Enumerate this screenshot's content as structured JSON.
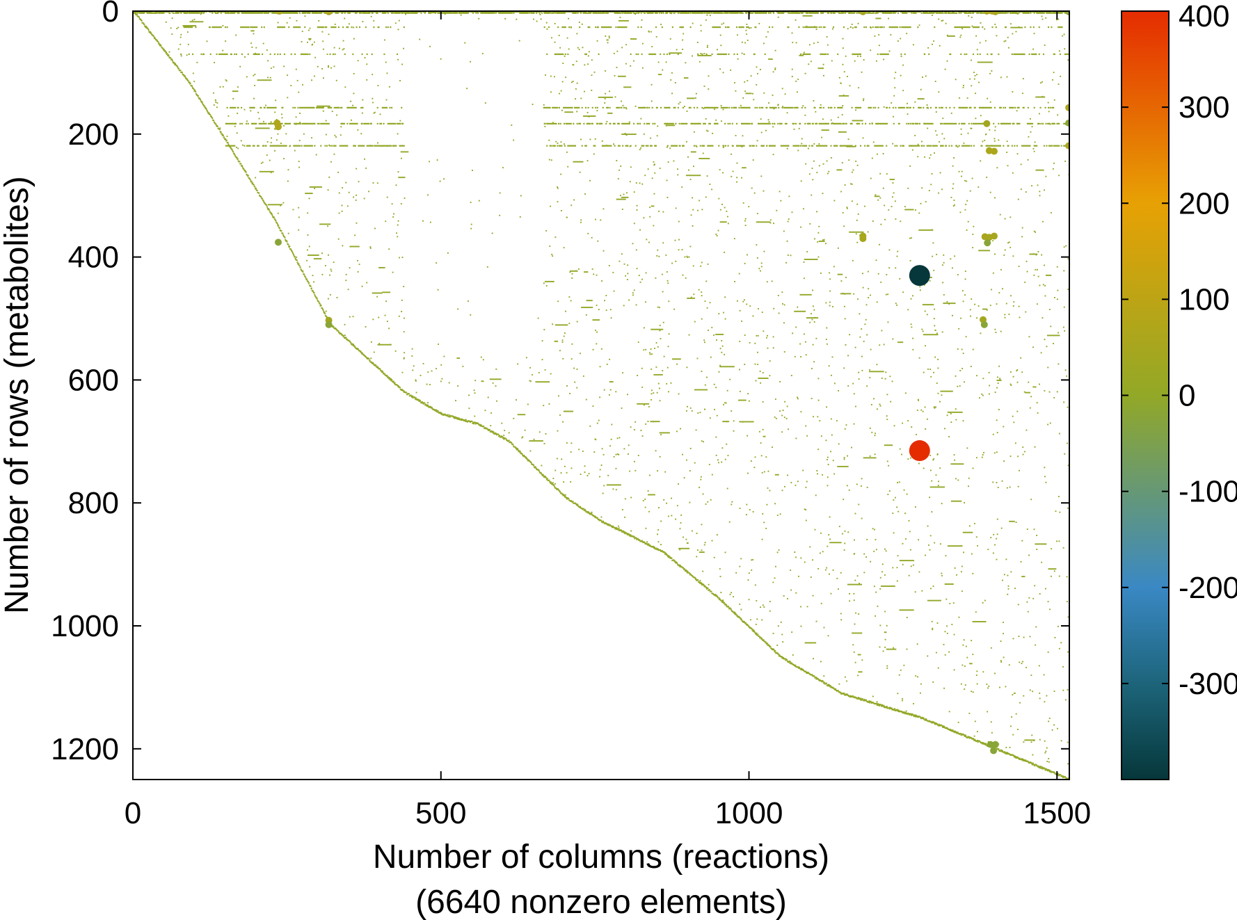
{
  "chart_data": {
    "type": "scatter",
    "subtype": "sparsity pattern (spy plot)",
    "xlabel": "Number of columns (reactions)",
    "xlabel_note": "(6640 nonzero elements)",
    "ylabel": "Number of rows (metabolites)",
    "xlim": [
      0,
      1520
    ],
    "ylim": [
      0,
      1250
    ],
    "y_reversed": true,
    "x_ticks": [
      0,
      500,
      1000,
      1500
    ],
    "y_ticks": [
      0,
      200,
      400,
      600,
      800,
      1000,
      1200
    ],
    "colorbar": {
      "range": [
        -400,
        400
      ],
      "ticks": [
        400,
        300,
        200,
        100,
        0,
        -100,
        -200,
        -300
      ],
      "tick_labels": [
        "400",
        "300",
        "200",
        "100",
        "0",
        "-100",
        "-200",
        "-300"
      ],
      "colors": {
        "min": "#06373a",
        "low": "#1c6378",
        "mid_low": "#3a88c4",
        "zero": "#92a827",
        "mid_high": "#e7a104",
        "max": "#e52c01"
      }
    },
    "grid": false,
    "diagonal_band": [
      [
        0,
        0
      ],
      [
        90,
        115
      ],
      [
        150,
        210
      ],
      [
        230,
        340
      ],
      [
        320,
        510
      ],
      [
        440,
        620
      ],
      [
        500,
        655
      ],
      [
        560,
        672
      ],
      [
        610,
        700
      ],
      [
        700,
        790
      ],
      [
        760,
        830
      ],
      [
        860,
        880
      ],
      [
        950,
        955
      ],
      [
        1050,
        1050
      ],
      [
        1150,
        1110
      ],
      [
        1280,
        1150
      ],
      [
        1400,
        1200
      ],
      [
        1520,
        1250
      ]
    ],
    "extreme_points": [
      {
        "x": 1277,
        "y": 430,
        "value": -400
      },
      {
        "x": 1277,
        "y": 715,
        "value": 400
      }
    ],
    "highlighted_points": [
      {
        "x": 237,
        "y": 0,
        "value": 60
      },
      {
        "x": 318,
        "y": 1,
        "value": 60
      },
      {
        "x": 1185,
        "y": 1,
        "value": 50
      },
      {
        "x": 1386,
        "y": 0,
        "value": 60
      },
      {
        "x": 1395,
        "y": 0,
        "value": 60
      },
      {
        "x": 1400,
        "y": 1,
        "value": 60
      },
      {
        "x": 1519,
        "y": 1,
        "value": -20
      },
      {
        "x": 234,
        "y": 182,
        "value": 70
      },
      {
        "x": 236,
        "y": 188,
        "value": 70
      },
      {
        "x": 1386,
        "y": 183,
        "value": 40
      },
      {
        "x": 1519,
        "y": 157,
        "value": 60
      },
      {
        "x": 1519,
        "y": 182,
        "value": -20
      },
      {
        "x": 1519,
        "y": 219,
        "value": 60
      },
      {
        "x": 1390,
        "y": 227,
        "value": 60
      },
      {
        "x": 1398,
        "y": 228,
        "value": 60
      },
      {
        "x": 1185,
        "y": 366,
        "value": 50
      },
      {
        "x": 1185,
        "y": 370,
        "value": 50
      },
      {
        "x": 1383,
        "y": 367,
        "value": 50
      },
      {
        "x": 1390,
        "y": 368,
        "value": 50
      },
      {
        "x": 1398,
        "y": 366,
        "value": 50
      },
      {
        "x": 1387,
        "y": 377,
        "value": -20
      },
      {
        "x": 236,
        "y": 376,
        "value": -20
      },
      {
        "x": 318,
        "y": 503,
        "value": 40
      },
      {
        "x": 318,
        "y": 510,
        "value": -20
      },
      {
        "x": 1380,
        "y": 502,
        "value": 40
      },
      {
        "x": 1382,
        "y": 510,
        "value": -20
      },
      {
        "x": 1392,
        "y": 1193,
        "value": -20
      },
      {
        "x": 1400,
        "y": 1193,
        "value": -20
      },
      {
        "x": 1397,
        "y": 1203,
        "value": -20
      }
    ]
  }
}
